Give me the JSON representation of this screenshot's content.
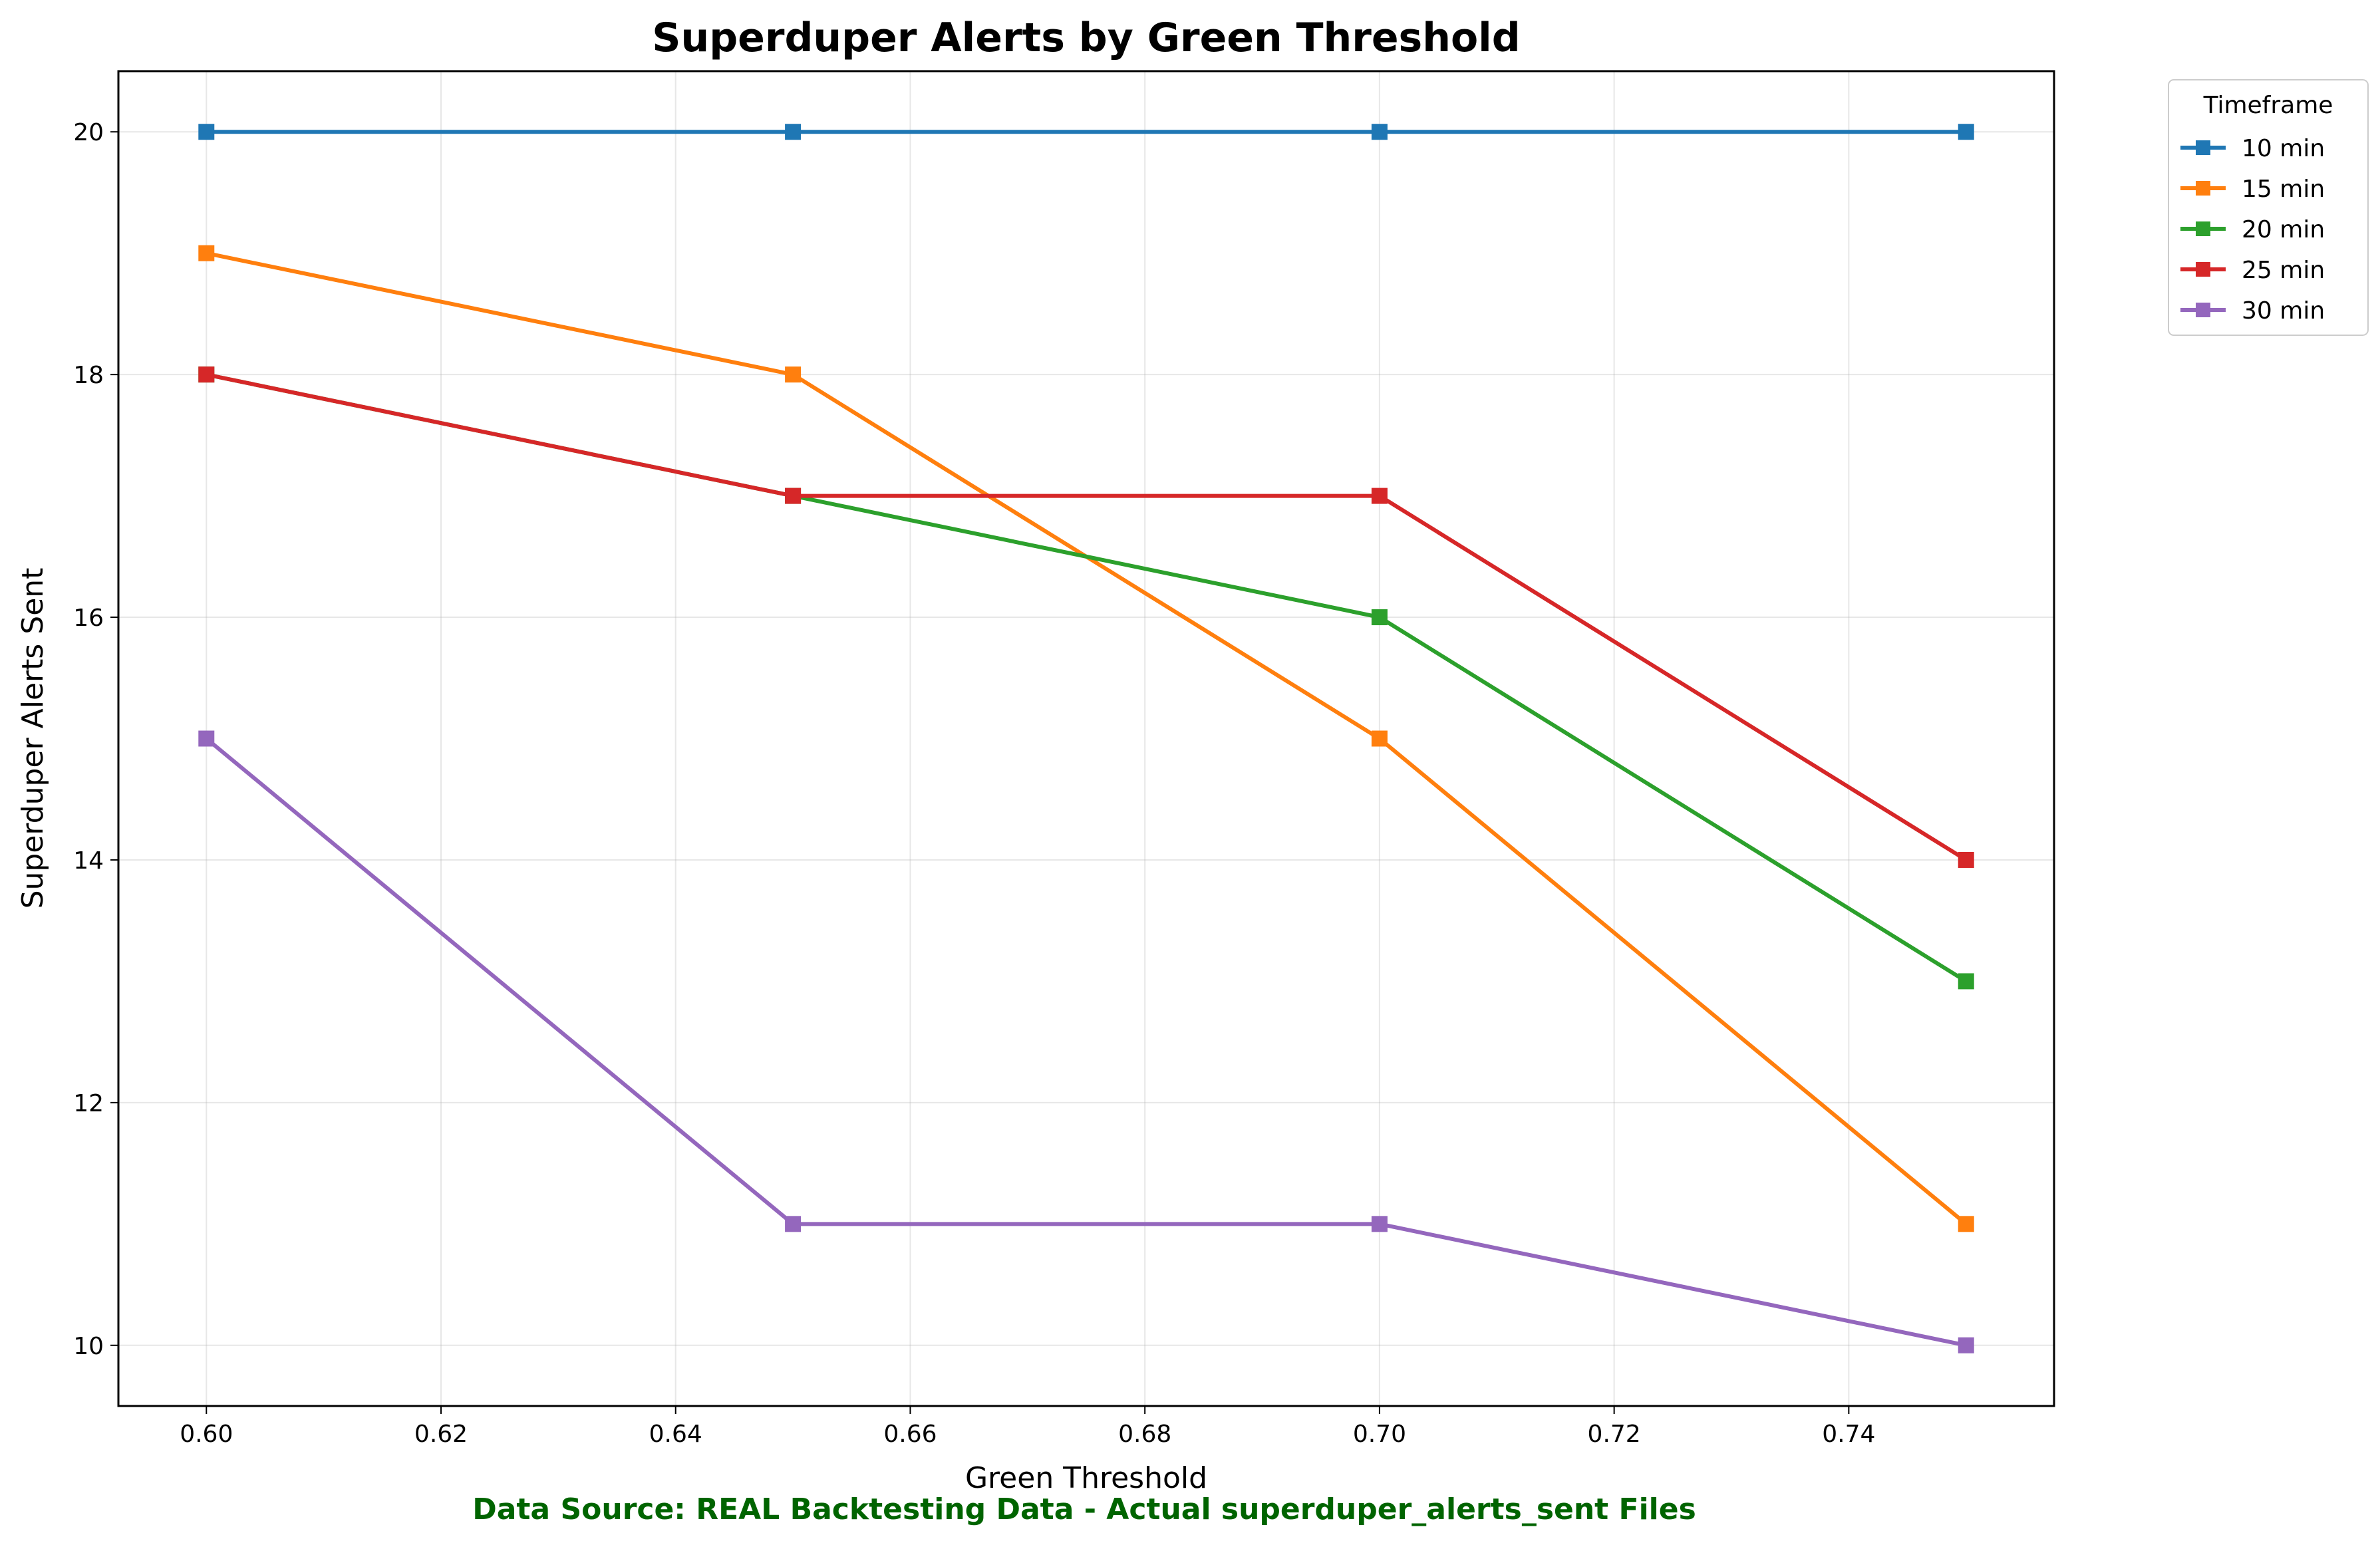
{
  "chart_data": {
    "type": "line",
    "title": "Superduper Alerts by Green Threshold",
    "xlabel": "Green Threshold",
    "ylabel": "Superduper Alerts Sent",
    "x": [
      0.6,
      0.65,
      0.7,
      0.75
    ],
    "xlim": [
      0.5925,
      0.7575
    ],
    "ylim": [
      9.5,
      20.5
    ],
    "xticks": [
      "0.60",
      "0.62",
      "0.64",
      "0.66",
      "0.68",
      "0.70",
      "0.72",
      "0.74"
    ],
    "yticks": [
      "10",
      "12",
      "14",
      "16",
      "18",
      "20"
    ],
    "grid": true,
    "legend_title": "Timeframe",
    "legend_position": "outside-top-right",
    "series": [
      {
        "name": "10 min",
        "color": "#1f77b4",
        "values": [
          20,
          20,
          20,
          20
        ]
      },
      {
        "name": "15 min",
        "color": "#ff7f0e",
        "values": [
          19,
          18,
          15,
          11
        ]
      },
      {
        "name": "20 min",
        "color": "#2ca02c",
        "values": [
          18,
          17,
          16,
          13
        ]
      },
      {
        "name": "25 min",
        "color": "#d62728",
        "values": [
          18,
          17,
          17,
          14
        ]
      },
      {
        "name": "30 min",
        "color": "#9467bd",
        "values": [
          15,
          11,
          11,
          10
        ]
      }
    ],
    "marker": "square",
    "footnote": "Data Source: REAL Backtesting Data - Actual superduper_alerts_sent Files",
    "footnote_color": "#006400"
  }
}
